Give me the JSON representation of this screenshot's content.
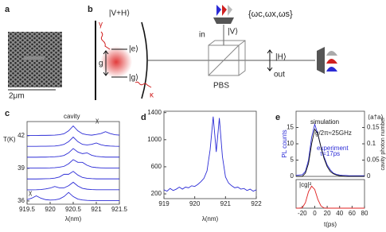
{
  "panel_a": {
    "label": "a",
    "scale_bar": "2μm"
  },
  "panel_b": {
    "label": "b",
    "input_state": "|V+H⟩",
    "gamma": "γ",
    "excited": "|e⟩",
    "coupling": "g",
    "ground": "|g⟩",
    "kappa": "κ",
    "in": "in",
    "frequencies": "{ωc,ωx,ωs}",
    "v_state": "|V⟩",
    "h_state": "|H⟩",
    "pbs": "PBS",
    "out": "out"
  },
  "chart_data": [
    {
      "type": "line",
      "label": "c",
      "ylabel": "T(K)",
      "xlabel": "λ(nm)",
      "color": "#2b2bd6",
      "x": [
        919.5,
        919.6,
        919.7,
        919.8,
        919.9,
        920,
        920.1,
        920.2,
        920.3,
        920.4,
        920.5,
        920.6,
        920.7,
        920.8,
        920.9,
        921,
        921.1,
        921.2,
        921.3,
        921.4,
        921.5
      ],
      "xlim": [
        919.5,
        921.5
      ],
      "xticks": [
        919.5,
        920,
        920.5,
        921,
        921.5
      ],
      "ylim": [
        35.7,
        43.3
      ],
      "yticks": [
        36,
        39,
        42
      ],
      "annotations": [
        "cavity",
        "χ",
        "χ"
      ],
      "series": [
        {
          "values": [
            42.02,
            42.02,
            42.02,
            42.03,
            42.03,
            42.04,
            42.05,
            42.09,
            42.18,
            42.45,
            42.9,
            42.45,
            42.18,
            42.09,
            42.05,
            42.12,
            42.2,
            42.37,
            42.2,
            42.09,
            42.05
          ]
        },
        {
          "values": [
            41.02,
            41.02,
            41.02,
            41.03,
            41.03,
            41.04,
            41.05,
            41.1,
            41.2,
            41.45,
            41.87,
            41.45,
            41.2,
            41.15,
            41.2,
            41.33,
            41.17,
            41.08,
            41.05,
            41.03,
            41.02
          ]
        },
        {
          "values": [
            40.02,
            40.02,
            40.02,
            40.03,
            40.03,
            40.04,
            40.06,
            40.1,
            40.18,
            40.42,
            40.82,
            40.5,
            40.35,
            40.42,
            40.2,
            40.1,
            40.06,
            40.03,
            40.03,
            40.03,
            40.03
          ]
        },
        {
          "values": [
            39.02,
            39.02,
            39.02,
            39.03,
            39.03,
            39.04,
            39.06,
            39.1,
            39.18,
            39.42,
            39.8,
            39.55,
            39.55,
            39.28,
            39.12,
            39.07,
            39.04,
            39.03,
            39.03,
            39.03,
            39.03
          ]
        },
        {
          "values": [
            38.02,
            38.02,
            38.02,
            38.03,
            38.04,
            38.05,
            38.1,
            38.2,
            38.45,
            38.45,
            38.72,
            38.38,
            38.16,
            38.08,
            38.05,
            38.03,
            38.03,
            38.03,
            38.03,
            38.03,
            38.03
          ]
        },
        {
          "values": [
            37.02,
            37.02,
            37.03,
            37.05,
            37.1,
            37.18,
            37.33,
            37.2,
            37.2,
            37.4,
            37.72,
            37.37,
            37.16,
            37.08,
            37.05,
            37.03,
            37.03,
            37.03,
            37.03,
            37.03,
            37.03
          ]
        },
        {
          "values": [
            36.12,
            36.25,
            36.47,
            36.25,
            36.12,
            36.08,
            36.1,
            36.18,
            36.4,
            36.78,
            36.4,
            36.17,
            36.09,
            36.05,
            36.03,
            36.03,
            36.03,
            36.03,
            36.03,
            36.03,
            36.03
          ]
        }
      ]
    },
    {
      "type": "line",
      "label": "d",
      "xlabel": "λ(nm)",
      "color": "#2b2bd6",
      "x": [
        919,
        919.1,
        919.2,
        919.3,
        919.4,
        919.5,
        919.6,
        919.7,
        919.8,
        919.9,
        920,
        920.1,
        920.2,
        920.3,
        920.4,
        920.5,
        920.6,
        920.7,
        920.8,
        920.9,
        921,
        921.1,
        921.2,
        921.3,
        921.4,
        921.5,
        921.6,
        921.7,
        921.8,
        921.9,
        922
      ],
      "xlim": [
        919,
        922
      ],
      "xticks": [
        919,
        920,
        921,
        922
      ],
      "ylim": [
        130,
        1420
      ],
      "yticks": [
        200,
        600,
        1000,
        1400
      ],
      "series": [
        {
          "values": [
            260,
            240,
            280,
            250,
            270,
            300,
            270,
            300,
            290,
            320,
            310,
            340,
            380,
            430,
            540,
            850,
            1340,
            820,
            1320,
            750,
            450,
            360,
            320,
            290,
            300,
            270,
            280,
            250,
            270,
            240,
            260
          ]
        }
      ]
    },
    {
      "type": "line",
      "label": "e",
      "ylabel": "PL counts",
      "y2label": "cavity photon number",
      "y2title": "⟨a†a⟩",
      "x": [
        -30,
        -25,
        -20,
        -15,
        -10,
        -5,
        0,
        5,
        10,
        15,
        20,
        25,
        30,
        35,
        40,
        45,
        50,
        55,
        60,
        65,
        70,
        75,
        80
      ],
      "xlim": [
        -30,
        80
      ],
      "ylim": [
        0,
        20
      ],
      "yticks": [
        0,
        5,
        10,
        15
      ],
      "y2lim": [
        0,
        0.2
      ],
      "y2ticks": [
        0,
        0.05,
        0.1,
        0.15
      ],
      "annotations": [
        "g/2π≈25GHz",
        "τ=17ps"
      ],
      "series": [
        {
          "name": "experiment",
          "color": "#2b2bd6",
          "values": [
            0.3,
            0.4,
            0.5,
            1.5,
            5,
            12,
            16,
            13,
            9,
            6,
            3.5,
            2,
            1,
            0.6,
            0.4,
            0.3,
            0.3,
            0.2,
            0.2,
            0.2,
            0.2,
            0.2,
            0.2
          ]
        },
        {
          "name": "simulation",
          "color": "#111111",
          "axis": "y2",
          "values": [
            0,
            0,
            0,
            0.01,
            0.04,
            0.1,
            0.145,
            0.13,
            0.09,
            0.055,
            0.03,
            0.015,
            0.008,
            0.004,
            0.002,
            0.001,
            0,
            0,
            0,
            0,
            0,
            0,
            0
          ]
        }
      ]
    },
    {
      "type": "line",
      "ylabel": "|cg|²",
      "xlabel": "t(ps)",
      "color": "#e02020",
      "x": [
        -30,
        -25,
        -20,
        -15,
        -10,
        -5,
        0,
        5,
        10,
        15,
        20,
        25,
        30,
        35,
        40,
        45,
        50,
        55,
        60,
        65,
        70,
        75,
        80
      ],
      "xlim": [
        -30,
        80
      ],
      "xticks": [
        -20,
        0,
        20,
        40,
        60,
        80
      ],
      "ylim": [
        0,
        1.3
      ],
      "series": [
        {
          "values": [
            0,
            0,
            0.02,
            0.25,
            0.75,
            1,
            0.85,
            0.4,
            0.1,
            0.01,
            0,
            0,
            0,
            0,
            0,
            0,
            0,
            0,
            0,
            0,
            0,
            0,
            0
          ]
        }
      ]
    }
  ]
}
